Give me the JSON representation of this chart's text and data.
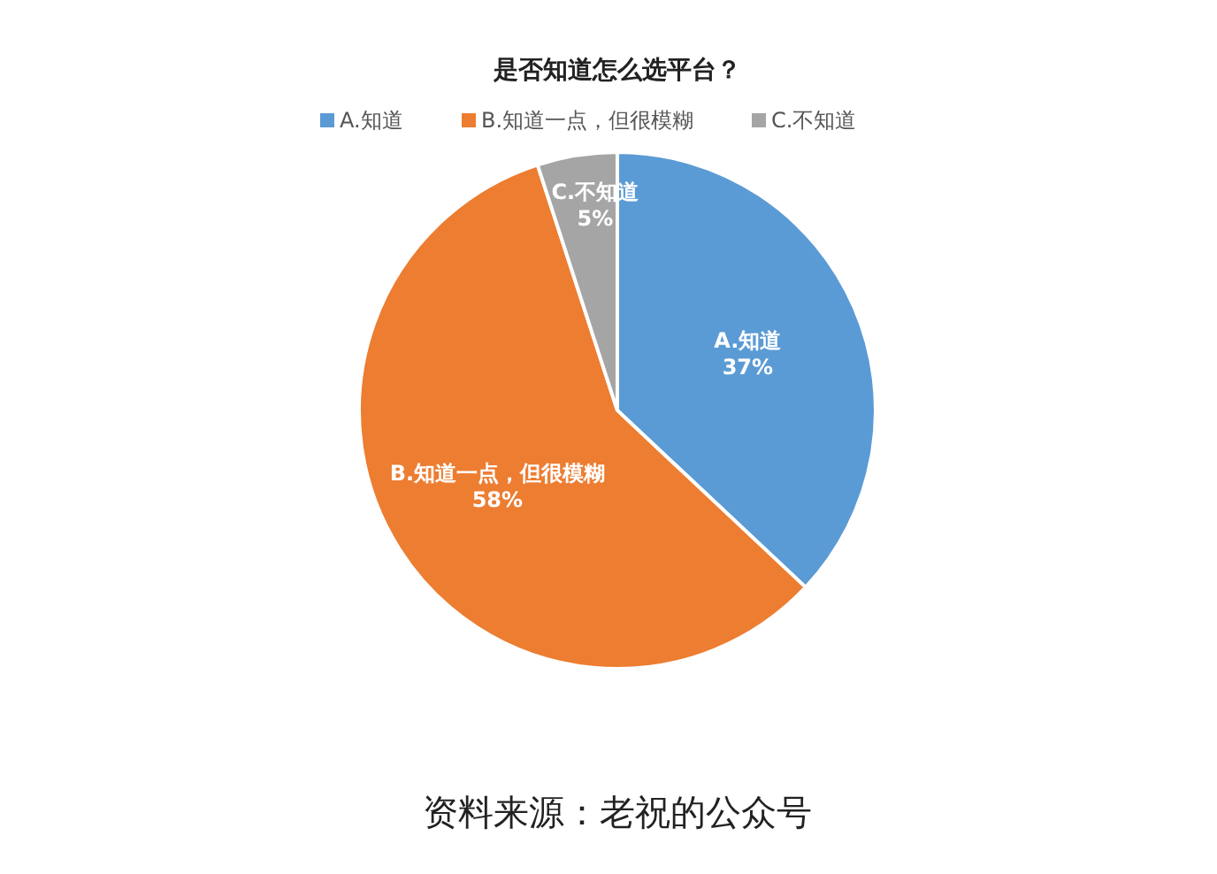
{
  "chart_data": {
    "type": "pie",
    "title": "是否知道怎么选平台？",
    "categories": [
      "A.知道",
      "B.知道一点，但很模糊",
      "C.不知道"
    ],
    "values": [
      37,
      58,
      5
    ],
    "colors": [
      "#5b9bd5",
      "#ed7d31",
      "#a5a5a5"
    ],
    "legend": "top",
    "value_labels": [
      "37%",
      "58%",
      "5%"
    ],
    "annotations": [
      "资料来源：老祝的公众号"
    ]
  }
}
